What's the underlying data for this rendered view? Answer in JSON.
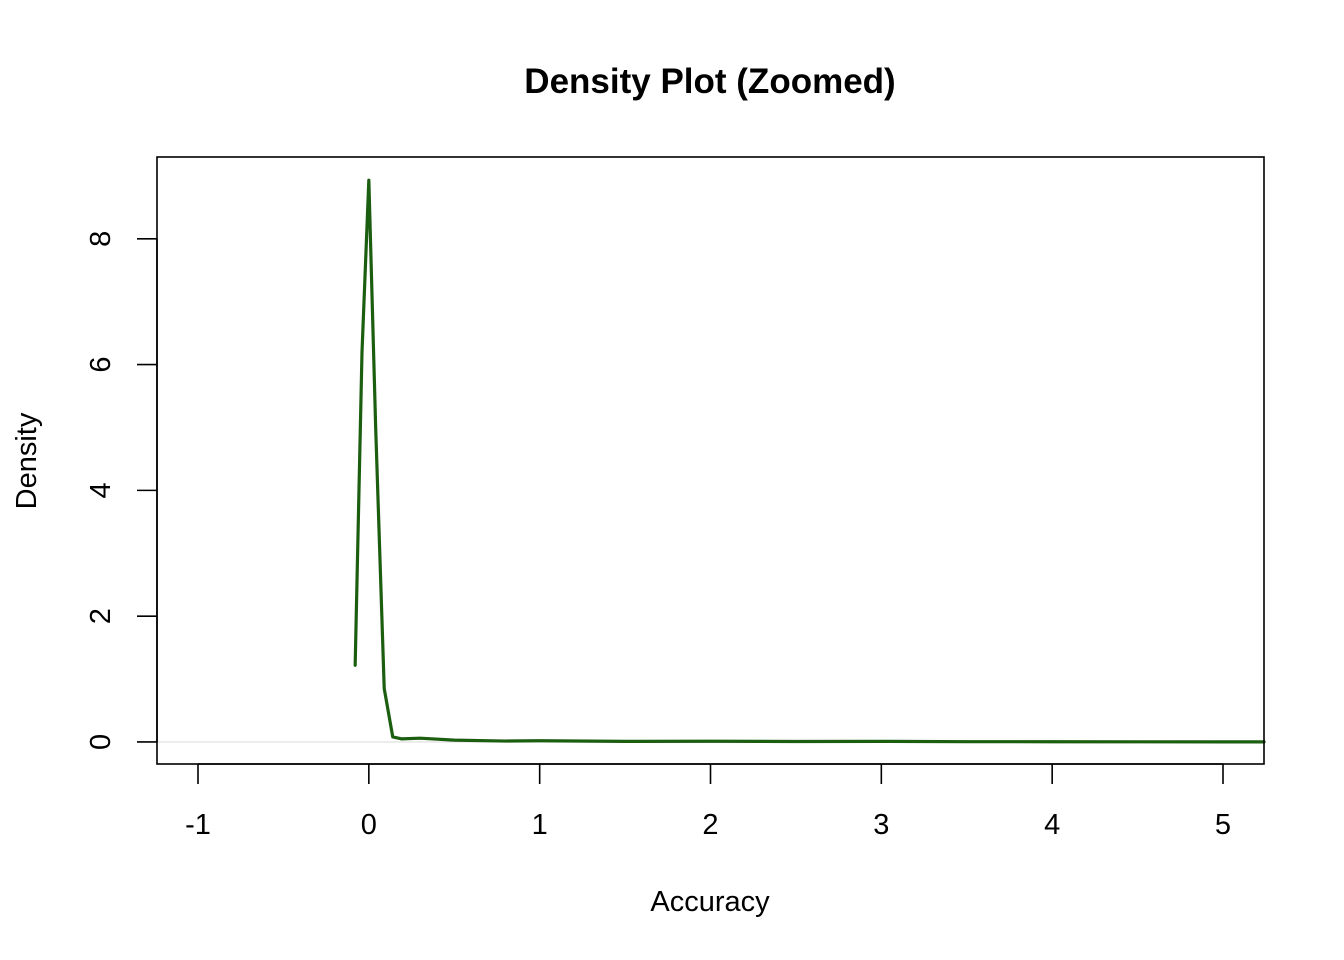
{
  "chart_data": {
    "type": "line",
    "title": "Density Plot (Zoomed)",
    "xlabel": "Accuracy",
    "ylabel": "Density",
    "xlim": [
      -1.24,
      5.24
    ],
    "ylim": [
      -0.35,
      9.3
    ],
    "x_ticks": [
      -1,
      0,
      1,
      2,
      3,
      4,
      5
    ],
    "y_ticks": [
      0,
      2,
      4,
      6,
      8
    ],
    "x_tick_labels": [
      "-1",
      "0",
      "1",
      "2",
      "3",
      "4",
      "5"
    ],
    "y_tick_labels": [
      "0",
      "2",
      "4",
      "6",
      "8"
    ],
    "grid": false,
    "legend": "none",
    "colors": {
      "line": "#1b5e0f",
      "baseline": "#d9d9d9",
      "axis": "#000000"
    },
    "series": [
      {
        "x": [
          -0.08,
          -0.04,
          0.0,
          0.04,
          0.09,
          0.14,
          0.19,
          0.3,
          0.5,
          0.8,
          1.0,
          1.5,
          2.0,
          2.5,
          3.0,
          3.5,
          4.0,
          4.5,
          5.0,
          5.24
        ],
        "values": [
          1.22,
          6.2,
          8.93,
          5.0,
          0.85,
          0.08,
          0.05,
          0.06,
          0.03,
          0.015,
          0.02,
          0.01,
          0.012,
          0.008,
          0.01,
          0.005,
          0.004,
          0.003,
          0.002,
          0.002
        ]
      }
    ]
  }
}
